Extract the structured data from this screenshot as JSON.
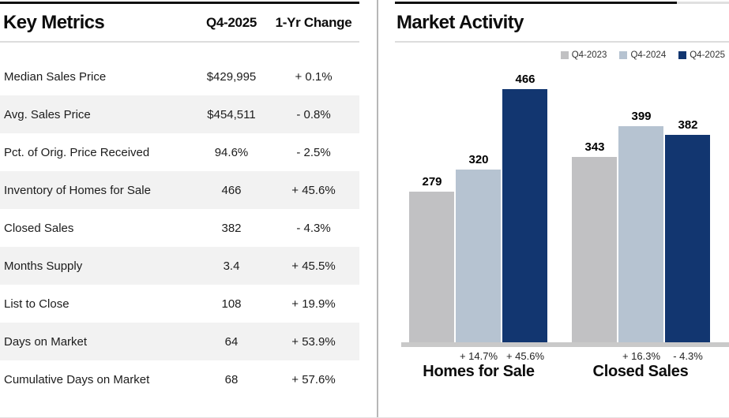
{
  "left_panel": {
    "title": "Key Metrics",
    "columns": [
      "Q4-2025",
      "1-Yr Change"
    ],
    "rows": [
      {
        "label": "Median Sales Price",
        "value": "$429,995",
        "change": "+ 0.1%"
      },
      {
        "label": "Avg. Sales Price",
        "value": "$454,511",
        "change": "- 0.8%"
      },
      {
        "label": "Pct. of Orig. Price Received",
        "value": "94.6%",
        "change": "- 2.5%"
      },
      {
        "label": "Inventory of Homes for Sale",
        "value": "466",
        "change": "+ 45.6%"
      },
      {
        "label": "Closed Sales",
        "value": "382",
        "change": "- 4.3%"
      },
      {
        "label": "Months Supply",
        "value": "3.4",
        "change": "+ 45.5%"
      },
      {
        "label": "List to Close",
        "value": "108",
        "change": "+ 19.9%"
      },
      {
        "label": "Days on Market",
        "value": "64",
        "change": "+ 53.9%"
      },
      {
        "label": "Cumulative Days on Market",
        "value": "68",
        "change": "+ 57.6%"
      }
    ]
  },
  "right_panel": {
    "title": "Market Activity"
  },
  "chart_data": {
    "type": "bar",
    "title": "Market Activity",
    "categories": [
      "Homes for Sale",
      "Closed Sales"
    ],
    "series": [
      {
        "name": "Q4-2023",
        "color": "#c1c1c3",
        "values": [
          279,
          343
        ]
      },
      {
        "name": "Q4-2024",
        "color": "#b6c3d1",
        "values": [
          320,
          399
        ]
      },
      {
        "name": "Q4-2025",
        "color": "#123670",
        "values": [
          466,
          382
        ]
      }
    ],
    "pct_changes": [
      [
        "",
        "+ 14.7%",
        "+ 45.6%"
      ],
      [
        "",
        "+ 16.3%",
        "- 4.3%"
      ]
    ],
    "xlabel": "",
    "ylabel": "",
    "ylim": [
      0,
      466
    ],
    "grid": false,
    "legend_position": "top-right"
  },
  "colors": {
    "accent_navy": "#123670",
    "light_blue": "#b6c3d1",
    "gray_bar": "#c1c1c3",
    "row_alt_bg": "#f2f2f2",
    "axis_line": "#c9c9c9",
    "top_rule": "#101010"
  }
}
